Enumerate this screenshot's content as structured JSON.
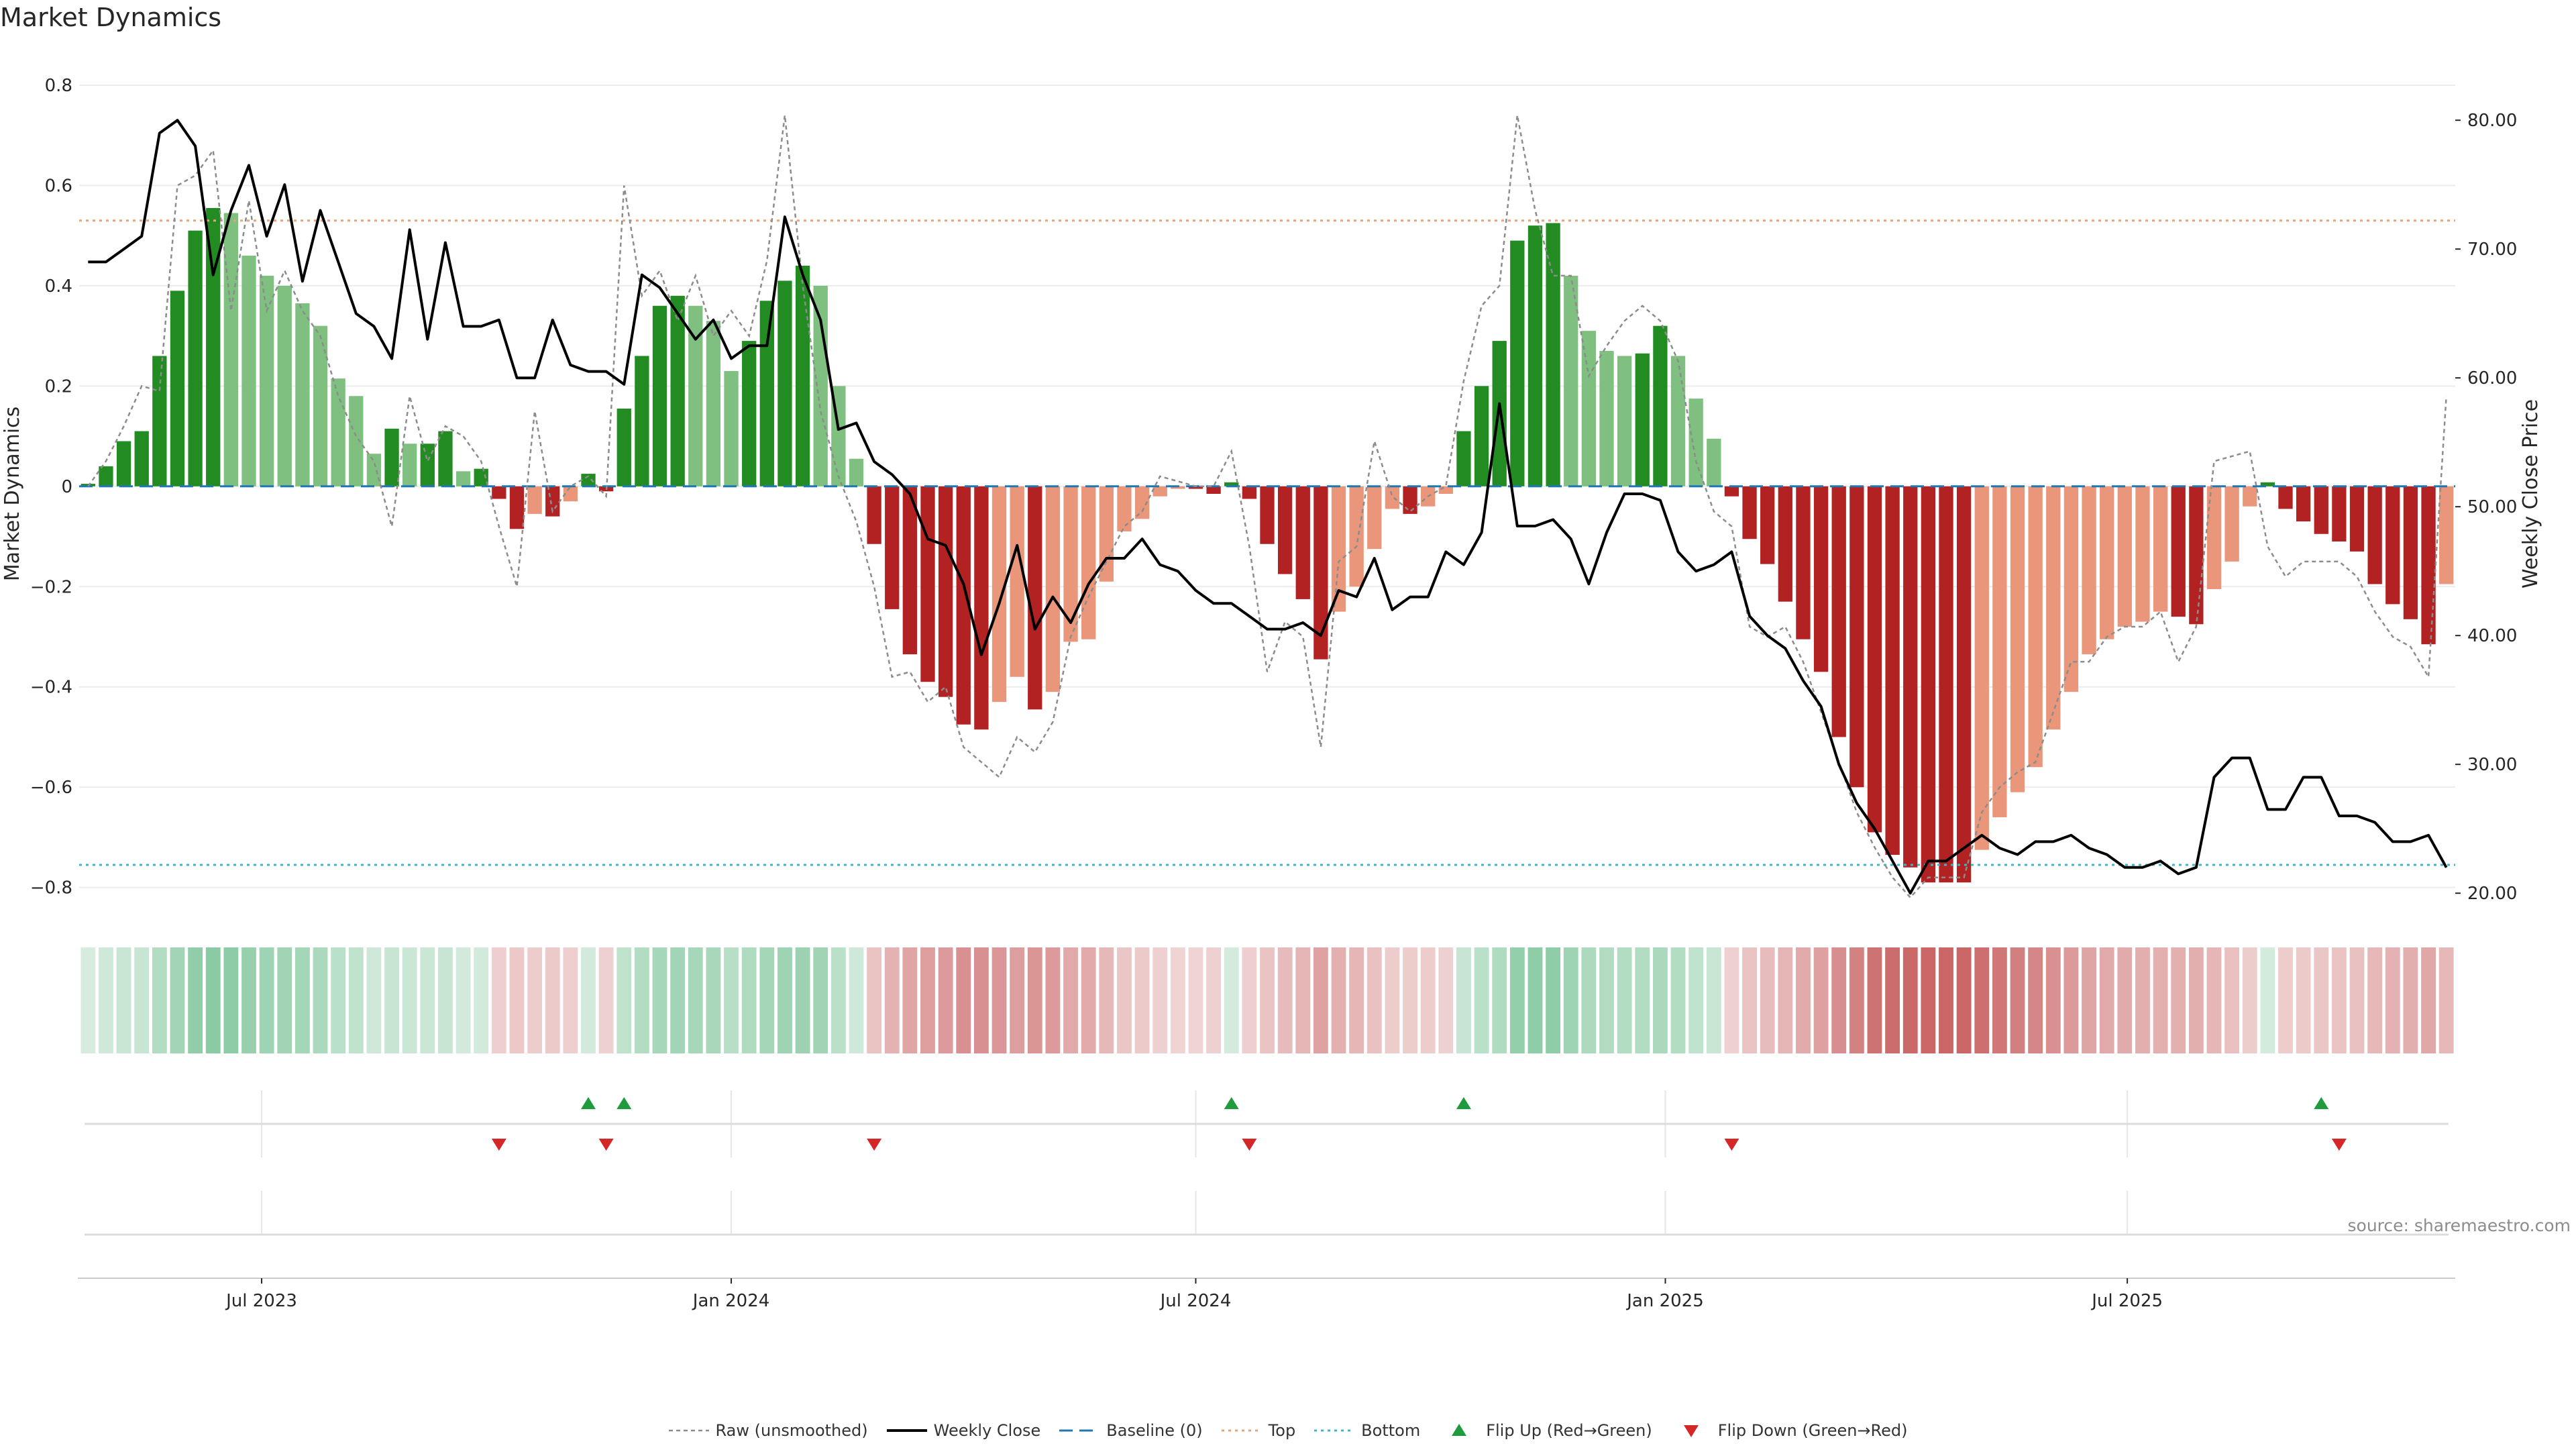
{
  "chart_data": {
    "title": "Market Dynamics",
    "type": "bar",
    "left_axis": {
      "label": "Market Dynamics",
      "range": [
        -0.85,
        0.82
      ],
      "ticks": [
        0.8,
        0.6,
        0.4,
        0.2,
        0,
        -0.2,
        -0.4,
        -0.6,
        -0.8
      ],
      "tick_labels": [
        "0.8",
        "0.6",
        "0.4",
        "0.2",
        "0",
        "−0.2",
        "−0.4",
        "−0.6",
        "−0.8"
      ]
    },
    "right_axis": {
      "label": "Weekly Close Price",
      "range": [
        18.5,
        83.5
      ],
      "ticks": [
        80,
        70,
        60,
        50,
        40,
        30,
        20
      ],
      "tick_labels": [
        "80.00",
        "70.00",
        "60.00",
        "50.00",
        "40.00",
        "30.00",
        "20.00"
      ]
    },
    "x_axis": {
      "ticks": [
        {
          "date": "2023-07-01",
          "label": "Jul 2023"
        },
        {
          "date": "2024-01-01",
          "label": "Jan 2024"
        },
        {
          "date": "2024-07-01",
          "label": "Jul 2024"
        },
        {
          "date": "2025-01-01",
          "label": "Jan 2025"
        },
        {
          "date": "2025-07-01",
          "label": "Jul 2025"
        }
      ]
    },
    "first_week": "2023-04-24",
    "week_count": 133,
    "weeks": [
      {
        "md": 0.005,
        "raw": 0.0,
        "close": 69.0
      },
      {
        "md": 0.04,
        "raw": 0.05,
        "close": 69.0
      },
      {
        "md": 0.09,
        "raw": 0.12,
        "close": 70.0
      },
      {
        "md": 0.11,
        "raw": 0.2,
        "close": 71.0
      },
      {
        "md": 0.26,
        "raw": 0.19,
        "close": 79.0
      },
      {
        "md": 0.39,
        "raw": 0.6,
        "close": 80.0
      },
      {
        "md": 0.51,
        "raw": 0.62,
        "close": 78.0
      },
      {
        "md": 0.555,
        "raw": 0.67,
        "close": 68.0
      },
      {
        "md": 0.545,
        "raw": 0.35,
        "close": 73.0
      },
      {
        "md": 0.46,
        "raw": 0.57,
        "close": 76.5
      },
      {
        "md": 0.42,
        "raw": 0.35,
        "close": 71.0
      },
      {
        "md": 0.4,
        "raw": 0.43,
        "close": 75.0
      },
      {
        "md": 0.365,
        "raw": 0.35,
        "close": 67.5
      },
      {
        "md": 0.32,
        "raw": 0.3,
        "close": 73.0
      },
      {
        "md": 0.215,
        "raw": 0.18,
        "close": 69.0
      },
      {
        "md": 0.18,
        "raw": 0.1,
        "close": 65.0
      },
      {
        "md": 0.065,
        "raw": 0.05,
        "close": 64.0
      },
      {
        "md": 0.115,
        "raw": -0.08,
        "close": 61.5
      },
      {
        "md": 0.085,
        "raw": 0.18,
        "close": 71.5
      },
      {
        "md": 0.085,
        "raw": 0.05,
        "close": 63.0
      },
      {
        "md": 0.11,
        "raw": 0.12,
        "close": 70.5
      },
      {
        "md": 0.03,
        "raw": 0.1,
        "close": 64.0
      },
      {
        "md": 0.035,
        "raw": 0.05,
        "close": 64.0
      },
      {
        "md": -0.025,
        "raw": -0.08,
        "close": 64.5
      },
      {
        "md": -0.085,
        "raw": -0.2,
        "close": 60.0
      },
      {
        "md": -0.055,
        "raw": 0.15,
        "close": 60.0
      },
      {
        "md": -0.06,
        "raw": -0.05,
        "close": 64.5
      },
      {
        "md": -0.03,
        "raw": 0.0,
        "close": 61.0
      },
      {
        "md": 0.025,
        "raw": 0.02,
        "close": 60.5
      },
      {
        "md": -0.01,
        "raw": -0.02,
        "close": 60.5
      },
      {
        "md": 0.155,
        "raw": 0.6,
        "close": 59.5
      },
      {
        "md": 0.26,
        "raw": 0.38,
        "close": 68.0
      },
      {
        "md": 0.36,
        "raw": 0.43,
        "close": 67.0
      },
      {
        "md": 0.38,
        "raw": 0.33,
        "close": 65.0
      },
      {
        "md": 0.36,
        "raw": 0.42,
        "close": 63.0
      },
      {
        "md": 0.33,
        "raw": 0.3,
        "close": 64.5
      },
      {
        "md": 0.23,
        "raw": 0.35,
        "close": 61.5
      },
      {
        "md": 0.29,
        "raw": 0.3,
        "close": 62.5
      },
      {
        "md": 0.37,
        "raw": 0.45,
        "close": 62.5
      },
      {
        "md": 0.41,
        "raw": 0.74,
        "close": 72.5
      },
      {
        "md": 0.44,
        "raw": 0.4,
        "close": 68.0
      },
      {
        "md": 0.4,
        "raw": 0.15,
        "close": 64.5
      },
      {
        "md": 0.2,
        "raw": 0.02,
        "close": 56.0
      },
      {
        "md": 0.055,
        "raw": -0.07,
        "close": 56.5
      },
      {
        "md": -0.115,
        "raw": -0.2,
        "close": 53.5
      },
      {
        "md": -0.245,
        "raw": -0.38,
        "close": 52.5
      },
      {
        "md": -0.335,
        "raw": -0.37,
        "close": 51.0
      },
      {
        "md": -0.39,
        "raw": -0.43,
        "close": 47.5
      },
      {
        "md": -0.42,
        "raw": -0.4,
        "close": 47.0
      },
      {
        "md": -0.475,
        "raw": -0.52,
        "close": 44.0
      },
      {
        "md": -0.485,
        "raw": -0.55,
        "close": 38.5
      },
      {
        "md": -0.43,
        "raw": -0.58,
        "close": 42.5
      },
      {
        "md": -0.38,
        "raw": -0.5,
        "close": 47.0
      },
      {
        "md": -0.445,
        "raw": -0.53,
        "close": 40.5
      },
      {
        "md": -0.41,
        "raw": -0.47,
        "close": 43.0
      },
      {
        "md": -0.31,
        "raw": -0.3,
        "close": 41.0
      },
      {
        "md": -0.305,
        "raw": -0.22,
        "close": 44.0
      },
      {
        "md": -0.19,
        "raw": -0.15,
        "close": 46.0
      },
      {
        "md": -0.09,
        "raw": -0.08,
        "close": 46.0
      },
      {
        "md": -0.065,
        "raw": -0.05,
        "close": 47.5
      },
      {
        "md": -0.02,
        "raw": 0.02,
        "close": 45.5
      },
      {
        "md": -0.005,
        "raw": 0.01,
        "close": 45.0
      },
      {
        "md": -0.005,
        "raw": 0.0,
        "close": 43.5
      },
      {
        "md": -0.015,
        "raw": 0.0,
        "close": 42.5
      },
      {
        "md": 0.008,
        "raw": 0.07,
        "close": 42.5
      },
      {
        "md": -0.025,
        "raw": -0.12,
        "close": 41.5
      },
      {
        "md": -0.115,
        "raw": -0.37,
        "close": 40.5
      },
      {
        "md": -0.175,
        "raw": -0.27,
        "close": 40.5
      },
      {
        "md": -0.225,
        "raw": -0.3,
        "close": 41.0
      },
      {
        "md": -0.345,
        "raw": -0.52,
        "close": 40.0
      },
      {
        "md": -0.25,
        "raw": -0.15,
        "close": 43.5
      },
      {
        "md": -0.2,
        "raw": -0.12,
        "close": 43.0
      },
      {
        "md": -0.125,
        "raw": 0.09,
        "close": 46.0
      },
      {
        "md": -0.045,
        "raw": -0.02,
        "close": 42.0
      },
      {
        "md": -0.055,
        "raw": -0.05,
        "close": 43.0
      },
      {
        "md": -0.04,
        "raw": -0.02,
        "close": 43.0
      },
      {
        "md": -0.015,
        "raw": 0.0,
        "close": 46.5
      },
      {
        "md": 0.11,
        "raw": 0.21,
        "close": 45.5
      },
      {
        "md": 0.2,
        "raw": 0.36,
        "close": 48.0
      },
      {
        "md": 0.29,
        "raw": 0.4,
        "close": 58.0
      },
      {
        "md": 0.49,
        "raw": 0.74,
        "close": 48.5
      },
      {
        "md": 0.52,
        "raw": 0.55,
        "close": 48.5
      },
      {
        "md": 0.525,
        "raw": 0.42,
        "close": 49.0
      },
      {
        "md": 0.42,
        "raw": 0.42,
        "close": 47.5
      },
      {
        "md": 0.31,
        "raw": 0.22,
        "close": 44.0
      },
      {
        "md": 0.27,
        "raw": 0.28,
        "close": 48.0
      },
      {
        "md": 0.26,
        "raw": 0.33,
        "close": 51.0
      },
      {
        "md": 0.265,
        "raw": 0.36,
        "close": 51.0
      },
      {
        "md": 0.32,
        "raw": 0.33,
        "close": 50.5
      },
      {
        "md": 0.26,
        "raw": 0.25,
        "close": 46.5
      },
      {
        "md": 0.175,
        "raw": 0.05,
        "close": 45.0
      },
      {
        "md": 0.095,
        "raw": -0.05,
        "close": 45.5
      },
      {
        "md": -0.02,
        "raw": -0.08,
        "close": 46.5
      },
      {
        "md": -0.105,
        "raw": -0.28,
        "close": 41.5
      },
      {
        "md": -0.155,
        "raw": -0.3,
        "close": 40.0
      },
      {
        "md": -0.23,
        "raw": -0.28,
        "close": 39.0
      },
      {
        "md": -0.305,
        "raw": -0.35,
        "close": 36.5
      },
      {
        "md": -0.37,
        "raw": -0.45,
        "close": 34.5
      },
      {
        "md": -0.5,
        "raw": -0.55,
        "close": 30.0
      },
      {
        "md": -0.6,
        "raw": -0.65,
        "close": 27.0
      },
      {
        "md": -0.69,
        "raw": -0.72,
        "close": 25.0
      },
      {
        "md": -0.735,
        "raw": -0.78,
        "close": 22.5
      },
      {
        "md": -0.76,
        "raw": -0.82,
        "close": 20.0
      },
      {
        "md": -0.79,
        "raw": -0.78,
        "close": 22.5
      },
      {
        "md": -0.79,
        "raw": -0.78,
        "close": 22.5
      },
      {
        "md": -0.79,
        "raw": -0.78,
        "close": 23.5
      },
      {
        "md": -0.725,
        "raw": -0.65,
        "close": 24.5
      },
      {
        "md": -0.66,
        "raw": -0.6,
        "close": 23.5
      },
      {
        "md": -0.61,
        "raw": -0.57,
        "close": 23.0
      },
      {
        "md": -0.56,
        "raw": -0.55,
        "close": 24.0
      },
      {
        "md": -0.485,
        "raw": -0.45,
        "close": 24.0
      },
      {
        "md": -0.41,
        "raw": -0.35,
        "close": 24.5
      },
      {
        "md": -0.335,
        "raw": -0.35,
        "close": 23.5
      },
      {
        "md": -0.305,
        "raw": -0.3,
        "close": 23.0
      },
      {
        "md": -0.28,
        "raw": -0.28,
        "close": 22.0
      },
      {
        "md": -0.27,
        "raw": -0.28,
        "close": 22.0
      },
      {
        "md": -0.25,
        "raw": -0.25,
        "close": 22.5
      },
      {
        "md": -0.26,
        "raw": -0.35,
        "close": 21.5
      },
      {
        "md": -0.275,
        "raw": -0.28,
        "close": 22.0
      },
      {
        "md": -0.205,
        "raw": 0.05,
        "close": 29.0
      },
      {
        "md": -0.15,
        "raw": 0.06,
        "close": 30.5
      },
      {
        "md": -0.04,
        "raw": 0.07,
        "close": 30.5
      },
      {
        "md": 0.008,
        "raw": -0.12,
        "close": 26.5
      },
      {
        "md": -0.045,
        "raw": -0.18,
        "close": 26.5
      },
      {
        "md": -0.07,
        "raw": -0.15,
        "close": 29.0
      },
      {
        "md": -0.095,
        "raw": -0.15,
        "close": 29.0
      },
      {
        "md": -0.11,
        "raw": -0.15,
        "close": 26.0
      },
      {
        "md": -0.13,
        "raw": -0.18,
        "close": 26.0
      },
      {
        "md": -0.195,
        "raw": -0.25,
        "close": 25.5
      },
      {
        "md": -0.235,
        "raw": -0.3,
        "close": 24.0
      },
      {
        "md": -0.265,
        "raw": -0.32,
        "close": 24.0
      },
      {
        "md": -0.315,
        "raw": -0.38,
        "close": 24.5
      },
      {
        "md": -0.195,
        "raw": 0.18,
        "close": 22.0
      }
    ],
    "reference_lines": [
      {
        "name": "Baseline (0)",
        "value": 0,
        "color": "#1f77b4",
        "style": "dashed"
      },
      {
        "name": "Top",
        "value": 0.53,
        "color": "#e8a27c",
        "style": "dotted"
      },
      {
        "name": "Bottom",
        "value": -0.755,
        "color": "#3fb6c7",
        "style": "dotted"
      }
    ],
    "flip_up_weeks": [
      28,
      30,
      64,
      77,
      125
    ],
    "flip_down_weeks": [
      23,
      29,
      44,
      65,
      92,
      126
    ],
    "colors": {
      "bull_strong": "#228b22",
      "bull_weak": "#7fbf7f",
      "bear_strong": "#b22222",
      "bear_weak": "#e9967a",
      "raw": "#8c8c8c",
      "close": "#000000",
      "flip_up": "#1f9a3c",
      "flip_down": "#d62728"
    },
    "legend": {
      "placement": "bottom-center",
      "items": [
        {
          "key": "raw",
          "label": "Raw (unsmoothed)"
        },
        {
          "key": "close",
          "label": "Weekly Close"
        },
        {
          "key": "baseline",
          "label": "Baseline (0)"
        },
        {
          "key": "top",
          "label": "Top"
        },
        {
          "key": "bottom",
          "label": "Bottom"
        },
        {
          "key": "flip_up",
          "label": "Flip Up (Red→Green)"
        },
        {
          "key": "flip_down",
          "label": "Flip Down (Green→Red)"
        }
      ]
    },
    "source": "source: sharemaestro.com"
  }
}
